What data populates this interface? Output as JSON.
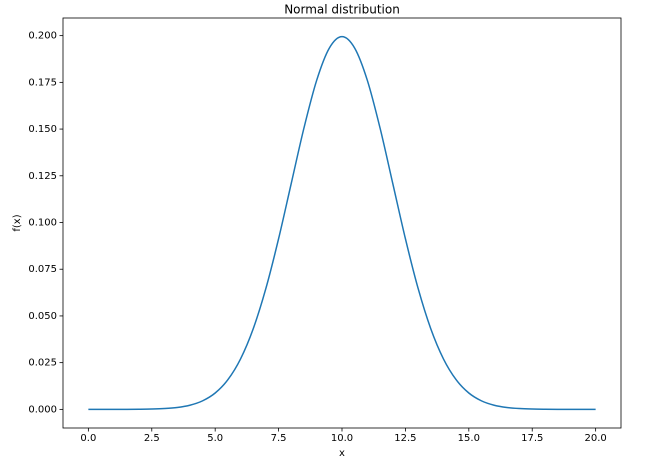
{
  "chart_data": {
    "type": "line",
    "title": "Normal distribution",
    "x_label": "x",
    "y_label": "f(x)",
    "x": [
      0,
      0.5,
      1,
      1.5,
      2,
      2.5,
      3,
      3.5,
      4,
      4.5,
      5,
      5.5,
      6,
      6.5,
      7,
      7.5,
      8,
      8.5,
      9,
      9.5,
      10,
      10.5,
      11,
      11.5,
      12,
      12.5,
      13,
      13.5,
      14,
      14.5,
      15,
      15.5,
      16,
      16.5,
      17,
      17.5,
      18,
      18.5,
      19,
      19.5,
      20
    ],
    "series": [
      {
        "name": "f(x)",
        "color": "#1f77b4",
        "values": [
          0,
          0,
          1e-05,
          2e-05,
          7e-05,
          0.00018,
          0.00044,
          0.00101,
          0.00222,
          0.00455,
          0.00876,
          0.01587,
          0.027,
          0.04314,
          0.06476,
          0.09132,
          0.12099,
          0.15057,
          0.17603,
          0.19333,
          0.19947,
          0.19333,
          0.17603,
          0.15057,
          0.12099,
          0.09132,
          0.06476,
          0.04314,
          0.027,
          0.01587,
          0.00876,
          0.00455,
          0.00222,
          0.00101,
          0.00044,
          0.00018,
          7e-05,
          2e-05,
          1e-05,
          0,
          0
        ]
      }
    ],
    "xlim": [
      -1,
      21
    ],
    "xticks": [
      {
        "value": 0,
        "label": "0.0"
      },
      {
        "value": 2.5,
        "label": "2.5"
      },
      {
        "value": 5,
        "label": "5.0"
      },
      {
        "value": 7.5,
        "label": "7.5"
      },
      {
        "value": 10,
        "label": "10.0"
      },
      {
        "value": 12.5,
        "label": "12.5"
      },
      {
        "value": 15,
        "label": "15.0"
      },
      {
        "value": 17.5,
        "label": "17.5"
      },
      {
        "value": 20,
        "label": "20.0"
      }
    ],
    "ylim": [
      -0.00997,
      0.20944
    ],
    "yticks": [
      {
        "value": 0,
        "label": "0.000"
      },
      {
        "value": 0.025,
        "label": "0.025"
      },
      {
        "value": 0.05,
        "label": "0.050"
      },
      {
        "value": 0.075,
        "label": "0.075"
      },
      {
        "value": 0.1,
        "label": "0.100"
      },
      {
        "value": 0.125,
        "label": "0.125"
      },
      {
        "value": 0.15,
        "label": "0.150"
      },
      {
        "value": 0.175,
        "label": "0.175"
      },
      {
        "value": 0.2,
        "label": "0.200"
      }
    ],
    "grid": false
  }
}
